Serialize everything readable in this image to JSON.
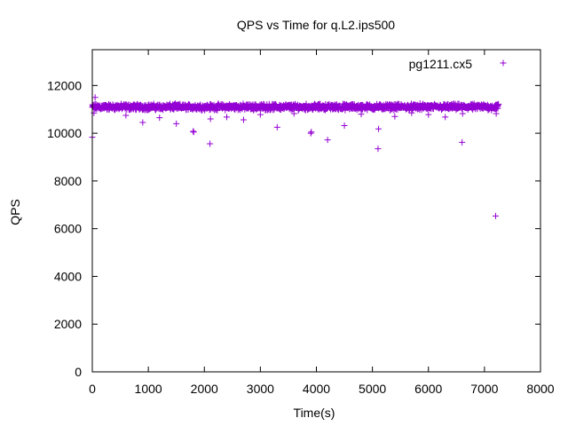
{
  "chart_data": {
    "type": "scatter",
    "title": "QPS vs Time for q.L2.ips500",
    "xlabel": "Time(s)",
    "ylabel": "QPS",
    "xlim": [
      0,
      8000
    ],
    "ylim": [
      0,
      13500
    ],
    "x_ticks": [
      0,
      1000,
      2000,
      3000,
      4000,
      5000,
      6000,
      7000,
      8000
    ],
    "y_ticks": [
      0,
      2000,
      4000,
      6000,
      8000,
      10000,
      12000
    ],
    "grid": false,
    "legend_position": "top-right",
    "series": [
      {
        "name": "pg1211.cx5",
        "color": "#9400d3",
        "marker": "plus",
        "dense_band": {
          "x_range": [
            0,
            7250
          ],
          "y_center": 11100,
          "y_spread": 150,
          "point_count": 1450
        },
        "points": [
          [
            0,
            9830
          ],
          [
            30,
            10850
          ],
          [
            50,
            11500
          ],
          [
            600,
            10750
          ],
          [
            900,
            10450
          ],
          [
            1200,
            10650
          ],
          [
            1500,
            10400
          ],
          [
            1800,
            10080
          ],
          [
            1810,
            10050
          ],
          [
            2100,
            9560
          ],
          [
            2110,
            10600
          ],
          [
            2400,
            10680
          ],
          [
            2700,
            10560
          ],
          [
            3000,
            10780
          ],
          [
            3300,
            10250
          ],
          [
            3600,
            10820
          ],
          [
            3900,
            10000
          ],
          [
            3910,
            10050
          ],
          [
            4200,
            9720
          ],
          [
            4500,
            10320
          ],
          [
            4800,
            10800
          ],
          [
            5100,
            9350
          ],
          [
            5110,
            10180
          ],
          [
            5400,
            10700
          ],
          [
            5700,
            10850
          ],
          [
            6000,
            10780
          ],
          [
            6300,
            10680
          ],
          [
            6600,
            9620
          ],
          [
            6610,
            10820
          ],
          [
            7200,
            6530
          ],
          [
            7210,
            10820
          ],
          [
            7240,
            11150
          ]
        ]
      }
    ]
  }
}
